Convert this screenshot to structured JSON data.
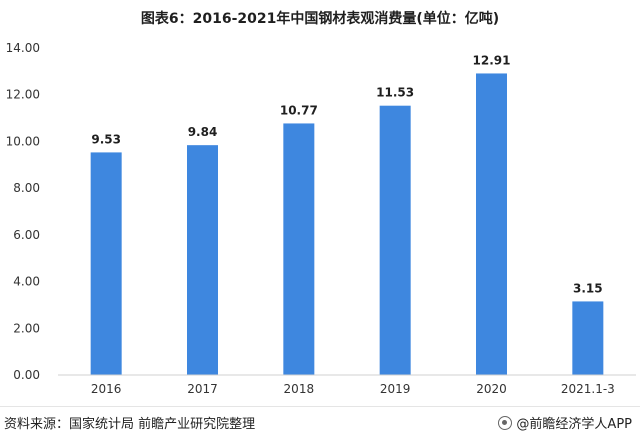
{
  "title": "图表6：2016-2021年中国钢材表观消费量(单位：亿吨)",
  "chart_data": {
    "type": "bar",
    "categories": [
      "2016",
      "2017",
      "2018",
      "2019",
      "2020",
      "2021.1-3"
    ],
    "values": [
      9.53,
      9.84,
      10.77,
      11.53,
      12.91,
      3.15
    ],
    "value_labels": [
      "9.53",
      "9.84",
      "10.77",
      "11.53",
      "12.91",
      "3.15"
    ],
    "ylim": [
      0,
      14
    ],
    "yticks": [
      "0.00",
      "2.00",
      "4.00",
      "6.00",
      "8.00",
      "10.00",
      "12.00",
      "14.00"
    ],
    "bar_color": "#3e87df",
    "grid": false
  },
  "source": "资料来源：国家统计局 前瞻产业研究院整理",
  "brand": "@前瞻经济学人APP"
}
